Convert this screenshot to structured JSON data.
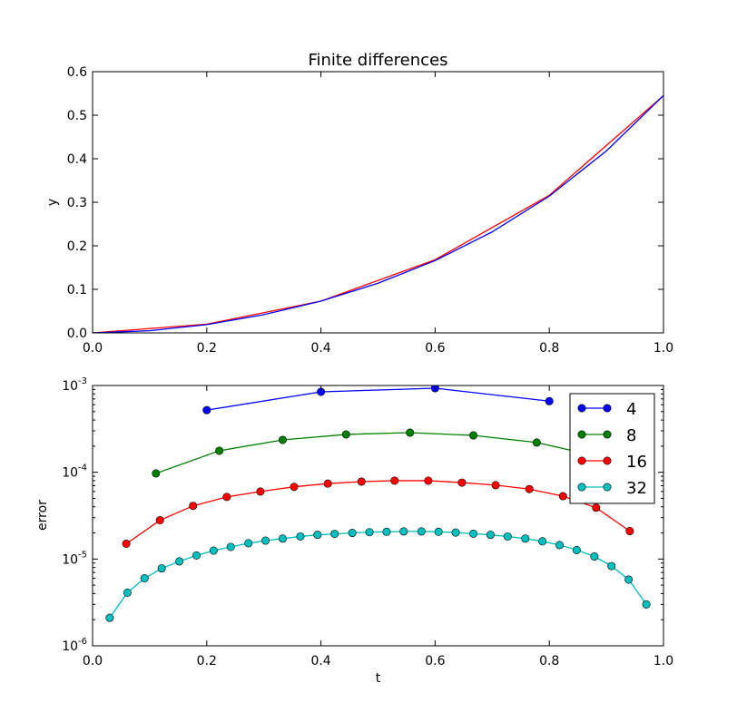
{
  "chart_data": [
    {
      "type": "line",
      "title": "Finite differences",
      "xlabel": "",
      "ylabel": "y",
      "xlim": [
        0,
        1
      ],
      "ylim": [
        0,
        0.6
      ],
      "xticks": [
        "0.0",
        "0.2",
        "0.4",
        "0.6",
        "0.8",
        "1.0"
      ],
      "yticks": [
        "0.0",
        "0.1",
        "0.2",
        "0.3",
        "0.4",
        "0.5",
        "0.6"
      ],
      "series": [
        {
          "color": "#ff0000",
          "x": [
            0,
            0.2,
            0.4,
            0.6,
            0.8,
            1.0
          ],
          "y": [
            0,
            0.02,
            0.073,
            0.168,
            0.316,
            0.545
          ]
        },
        {
          "color": "#0000ff",
          "x": [
            0,
            0.1,
            0.2,
            0.3,
            0.4,
            0.5,
            0.6,
            0.7,
            0.8,
            0.9,
            1.0
          ],
          "y": [
            0,
            0.005,
            0.019,
            0.042,
            0.073,
            0.114,
            0.166,
            0.232,
            0.314,
            0.418,
            0.545
          ]
        }
      ]
    },
    {
      "type": "line",
      "title": "",
      "xlabel": "t",
      "ylabel": "error",
      "yscale": "log",
      "xlim": [
        0,
        1
      ],
      "ylim": [
        1e-06,
        0.001
      ],
      "xticks": [
        "0.0",
        "0.2",
        "0.4",
        "0.6",
        "0.8",
        "1.0"
      ],
      "yticks": [
        {
          "base": "10",
          "exp": "-6"
        },
        {
          "base": "10",
          "exp": "-5"
        },
        {
          "base": "10",
          "exp": "-4"
        },
        {
          "base": "10",
          "exp": "-3"
        }
      ],
      "legend": "top-right",
      "series": [
        {
          "name": "4",
          "color": "#0000ff",
          "x": [
            0.2,
            0.4,
            0.6,
            0.8
          ],
          "y": [
            0.00052,
            0.000845,
            0.00093,
            0.00066
          ]
        },
        {
          "name": "8",
          "color": "#008000",
          "x": [
            0.111,
            0.222,
            0.333,
            0.444,
            0.556,
            0.667,
            0.778,
            0.889
          ],
          "y": [
            9.7e-05,
            0.000177,
            0.000236,
            0.000273,
            0.000286,
            0.000266,
            0.00022,
            0.00015
          ]
        },
        {
          "name": "16",
          "color": "#ff0000",
          "x": [
            0.059,
            0.118,
            0.176,
            0.235,
            0.294,
            0.353,
            0.412,
            0.471,
            0.529,
            0.588,
            0.647,
            0.706,
            0.765,
            0.824,
            0.882,
            0.941
          ],
          "y": [
            1.5e-05,
            2.8e-05,
            4.1e-05,
            5.2e-05,
            6e-05,
            6.8e-05,
            7.4e-05,
            7.8e-05,
            8e-05,
            8e-05,
            7.6e-05,
            7.1e-05,
            6.4e-05,
            5.3e-05,
            3.9e-05,
            2.1e-05
          ]
        },
        {
          "name": "32",
          "color": "#00bfbf",
          "x": [
            0.03,
            0.061,
            0.091,
            0.121,
            0.152,
            0.182,
            0.212,
            0.242,
            0.273,
            0.303,
            0.333,
            0.364,
            0.394,
            0.424,
            0.455,
            0.485,
            0.515,
            0.545,
            0.576,
            0.606,
            0.636,
            0.667,
            0.697,
            0.727,
            0.758,
            0.788,
            0.818,
            0.848,
            0.879,
            0.909,
            0.939,
            0.97
          ],
          "y": [
            2.1e-06,
            4.1e-06,
            6e-06,
            7.8e-06,
            9.4e-06,
            1.1e-05,
            1.25e-05,
            1.38e-05,
            1.52e-05,
            1.63e-05,
            1.72e-05,
            1.82e-05,
            1.9e-05,
            1.95e-05,
            2e-05,
            2.04e-05,
            2.06e-05,
            2.08e-05,
            2.08e-05,
            2.06e-05,
            2.02e-05,
            1.96e-05,
            1.9e-05,
            1.82e-05,
            1.72e-05,
            1.6e-05,
            1.45e-05,
            1.27e-05,
            1.07e-05,
            8.3e-06,
            5.8e-06,
            3e-06
          ]
        }
      ]
    }
  ]
}
